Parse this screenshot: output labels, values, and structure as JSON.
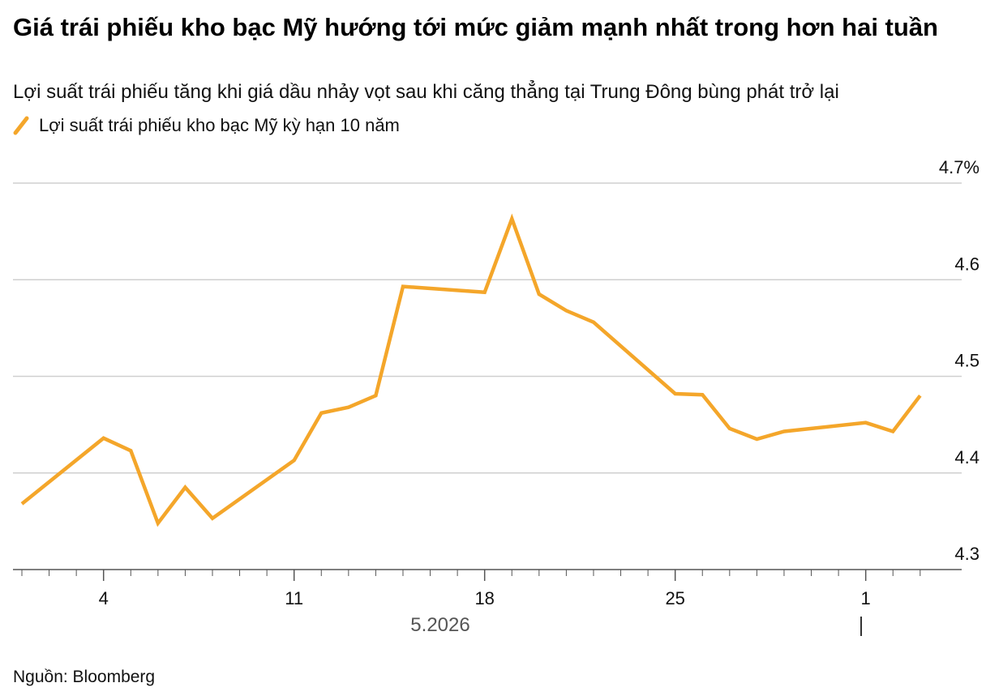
{
  "title": "Giá trái phiếu kho bạc Mỹ hướng tới mức giảm mạnh nhất trong hơn hai tuần",
  "subtitle": "Lợi suất trái phiếu tăng khi giá dầu nhảy vọt sau khi căng thẳng tại Trung Đông bùng phát trở lại",
  "source": "Nguồn: Bloomberg",
  "chart_data": {
    "type": "line",
    "title": "Giá trái phiếu kho bạc Mỹ hướng tới mức giảm mạnh nhất trong hơn hai tuần",
    "subtitle": "Lợi suất trái phiếu tăng khi giá dầu nhảy vọt sau khi căng thẳng tại Trung Đông bùng phát trở lại",
    "xlabel": "",
    "ylabel": "",
    "x_period_label": "5.2026",
    "x_tick_labels": [
      "4",
      "11",
      "18",
      "25",
      "1"
    ],
    "y_tick_labels": [
      "4.3",
      "4.4",
      "4.5",
      "4.6",
      "4.7%"
    ],
    "ylim": [
      4.3,
      4.7
    ],
    "grid": true,
    "legend_position": "top-left",
    "series": [
      {
        "name": "Lợi suất trái phiếu kho bạc Mỹ kỳ hạn 10 năm",
        "color": "#f4a62a",
        "x": [
          "2026-05-01",
          "2026-05-04",
          "2026-05-05",
          "2026-05-06",
          "2026-05-07",
          "2026-05-08",
          "2026-05-11",
          "2026-05-12",
          "2026-05-13",
          "2026-05-14",
          "2026-05-15",
          "2026-05-18",
          "2026-05-19",
          "2026-05-20",
          "2026-05-21",
          "2026-05-22",
          "2026-05-25",
          "2026-05-26",
          "2026-05-27",
          "2026-05-28",
          "2026-05-29",
          "2026-06-01",
          "2026-06-02",
          "2026-06-03"
        ],
        "values": [
          4.368,
          4.436,
          4.423,
          4.348,
          4.385,
          4.353,
          4.413,
          4.462,
          4.468,
          4.48,
          4.593,
          4.587,
          4.663,
          4.585,
          4.568,
          4.556,
          4.482,
          4.481,
          4.446,
          4.435,
          4.443,
          4.452,
          4.443,
          4.48
        ]
      }
    ]
  }
}
